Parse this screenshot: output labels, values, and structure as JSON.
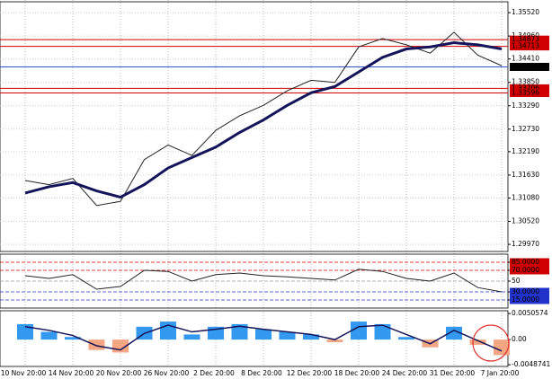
{
  "chart_data": [
    {
      "type": "line",
      "panel": "price",
      "categories": [
        "10 Nov 20:00",
        null,
        "14 Nov 20:00",
        null,
        "20 Nov 20:00",
        null,
        "26 Nov 20:00",
        null,
        "2 Dec 20:00",
        null,
        "8 Dec 20:00",
        null,
        "12 Dec 20:00",
        null,
        "18 Dec 20:00",
        null,
        "24 Dec 20:00",
        null,
        "31 Dec 20:00",
        null,
        "7 Jan 20:00"
      ],
      "series": [
        {
          "color": "#222222",
          "width": 1,
          "values": [
            1.315,
            1.314,
            1.3155,
            1.309,
            1.31,
            1.32,
            1.3235,
            1.321,
            1.327,
            1.3305,
            1.333,
            1.3365,
            1.339,
            1.3385,
            1.347,
            1.349,
            1.3475,
            1.3455,
            1.3505,
            1.345,
            1.3425
          ]
        },
        {
          "color": "#14145a",
          "width": 3,
          "values": [
            1.312,
            1.3135,
            1.3145,
            1.3125,
            1.311,
            1.314,
            1.318,
            1.3205,
            1.323,
            1.3265,
            1.3295,
            1.333,
            1.336,
            1.3375,
            1.341,
            1.3445,
            1.3465,
            1.347,
            1.348,
            1.3475,
            1.3465
          ]
        }
      ],
      "ylim": [
        1.298,
        1.3578
      ],
      "yticks": [
        {
          "value": 1.3552,
          "label": "1.35520"
        },
        {
          "value": 1.3496,
          "label": "1.34960"
        },
        {
          "value": 1.3441,
          "label": "1.34410"
        },
        {
          "value": 1.3385,
          "label": "1.33850"
        },
        {
          "value": 1.3329,
          "label": "1.33290"
        },
        {
          "value": 1.3273,
          "label": "1.32730"
        },
        {
          "value": 1.3219,
          "label": "1.32190"
        },
        {
          "value": 1.3163,
          "label": "1.31630"
        },
        {
          "value": 1.3108,
          "label": "1.31080"
        },
        {
          "value": 1.3052,
          "label": "1.30520"
        },
        {
          "value": 1.2997,
          "label": "1.29970"
        }
      ],
      "levels": [
        {
          "value": 1.34873,
          "color": "#d00000"
        },
        {
          "value": 1.34713,
          "color": "#d00000"
        },
        {
          "value": 1.34221,
          "color": "#3355cc"
        },
        {
          "value": 1.33706,
          "color": "#d00000"
        },
        {
          "value": 1.33596,
          "color": "#d00000"
        }
      ],
      "grid": true
    },
    {
      "type": "line",
      "panel": "rsi",
      "series": [
        {
          "color": "#222222",
          "width": 1,
          "values": [
            60,
            55,
            62,
            35,
            40,
            70,
            68,
            50,
            62,
            65,
            60,
            58,
            55,
            52,
            72,
            68,
            55,
            50,
            65,
            38,
            30
          ]
        }
      ],
      "ylim": [
        0,
        100
      ],
      "yticks": [
        {
          "value": 85,
          "label": "85.0000"
        },
        {
          "value": 70,
          "label": "70.0000"
        },
        50,
        {
          "value": 30,
          "label": "30.0000"
        },
        {
          "value": 15,
          "label": "15.0000"
        }
      ],
      "tick_colors": [
        "#d00000",
        "#d00000",
        "#999999",
        "#2233cc",
        "#2233cc"
      ]
    },
    {
      "type": "bar",
      "panel": "macd",
      "values": [
        0.003,
        0.0015,
        0.0005,
        -0.002,
        -0.0025,
        0.0025,
        0.0035,
        0.001,
        0.0025,
        0.003,
        0.002,
        0.0015,
        0.001,
        -0.0005,
        0.0035,
        0.003,
        0.0005,
        -0.0015,
        0.0025,
        -0.001,
        -0.003
      ],
      "up_color": "#3399ee",
      "down_color": "#f4a582",
      "series": [
        {
          "color": "#14145a",
          "width": 1.5,
          "values": [
            0.0025,
            0.0018,
            0.0008,
            -0.0012,
            -0.002,
            0.0012,
            0.0028,
            0.0015,
            0.002,
            0.0026,
            0.002,
            0.0015,
            0.001,
            0.0,
            0.0025,
            0.0028,
            0.001,
            -0.0008,
            0.0018,
            -0.0002,
            -0.0022
          ]
        }
      ],
      "ylim": [
        -0.0052,
        0.0056
      ],
      "yticks": [
        0.0050574,
        {
          "value": 0,
          "label": "0.00"
        },
        -0.0048741
      ]
    }
  ]
}
